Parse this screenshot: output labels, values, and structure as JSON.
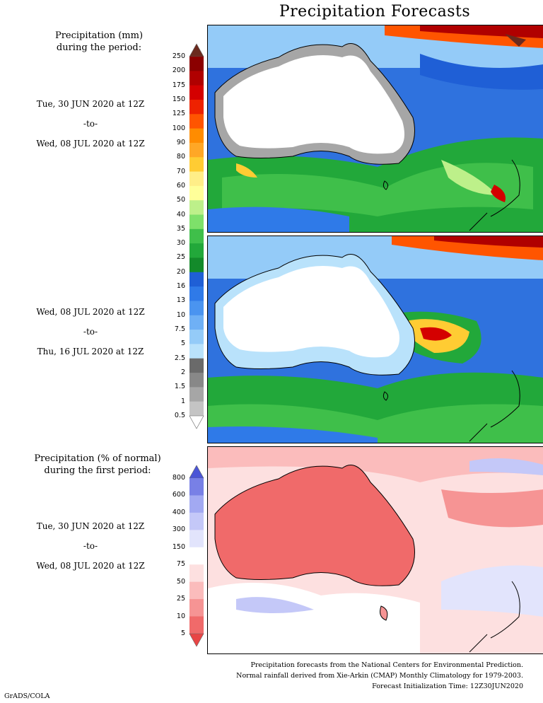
{
  "title": "Precipitation Forecasts",
  "panel1": {
    "label_line1": "Precipitation (mm)",
    "label_line2": "during the period:",
    "start": "Tue, 30 JUN 2020 at 12Z",
    "sep": "-to-",
    "end": "Wed, 08 JUL 2020 at 12Z"
  },
  "panel2": {
    "start": "Wed, 08 JUL 2020 at 12Z",
    "sep": "-to-",
    "end": "Thu, 16 JUL 2020 at 12Z"
  },
  "panel3": {
    "label_line1": "Precipitation (% of normal)",
    "label_line2": "during the first period:",
    "start": "Tue, 30 JUN 2020 at 12Z",
    "sep": "-to-",
    "end": "Wed, 08 JUL 2020 at 12Z"
  },
  "precip_legend": {
    "ticks": [
      "250",
      "200",
      "175",
      "150",
      "125",
      "100",
      "90",
      "80",
      "70",
      "60",
      "50",
      "40",
      "35",
      "30",
      "25",
      "20",
      "16",
      "13",
      "10",
      "7.5",
      "5",
      "2.5",
      "2",
      "1.5",
      "1",
      "0.5"
    ],
    "colors": [
      "#6b2a1e",
      "#8b0000",
      "#b00000",
      "#d40000",
      "#ee2200",
      "#ff5500",
      "#ff8c00",
      "#ffa726",
      "#ffcc33",
      "#ffee88",
      "#ffff99",
      "#bdf08a",
      "#7ee06a",
      "#3fbf4a",
      "#22a83a",
      "#138a2a",
      "#1f5fd6",
      "#2f7ae8",
      "#4a94f0",
      "#6fb0f5",
      "#94cbf8",
      "#b9e2fb",
      "#6a6a6a",
      "#888888",
      "#a6a6a6",
      "#c4c4c4",
      "#ffffff"
    ]
  },
  "anom_legend": {
    "ticks": [
      "800",
      "600",
      "400",
      "300",
      "150",
      "75",
      "50",
      "25",
      "10",
      "5"
    ],
    "colors": [
      "#4b55d6",
      "#7880e6",
      "#a2a9f2",
      "#c4c8f8",
      "#e2e4fc",
      "#ffffff",
      "#fde0e0",
      "#fbbcbc",
      "#f69494",
      "#f06a6a",
      "#e84545"
    ]
  },
  "footer": {
    "line1": "Precipitation forecasts from the National Centers for Environmental Prediction.",
    "line2": "Normal rainfall derived from Xie-Arkin (CMAP) Monthly Climatology for 1979-2003.",
    "line3": "Forecast Initialization Time: 12Z30JUN2020"
  },
  "brand": "GrADS/COLA"
}
